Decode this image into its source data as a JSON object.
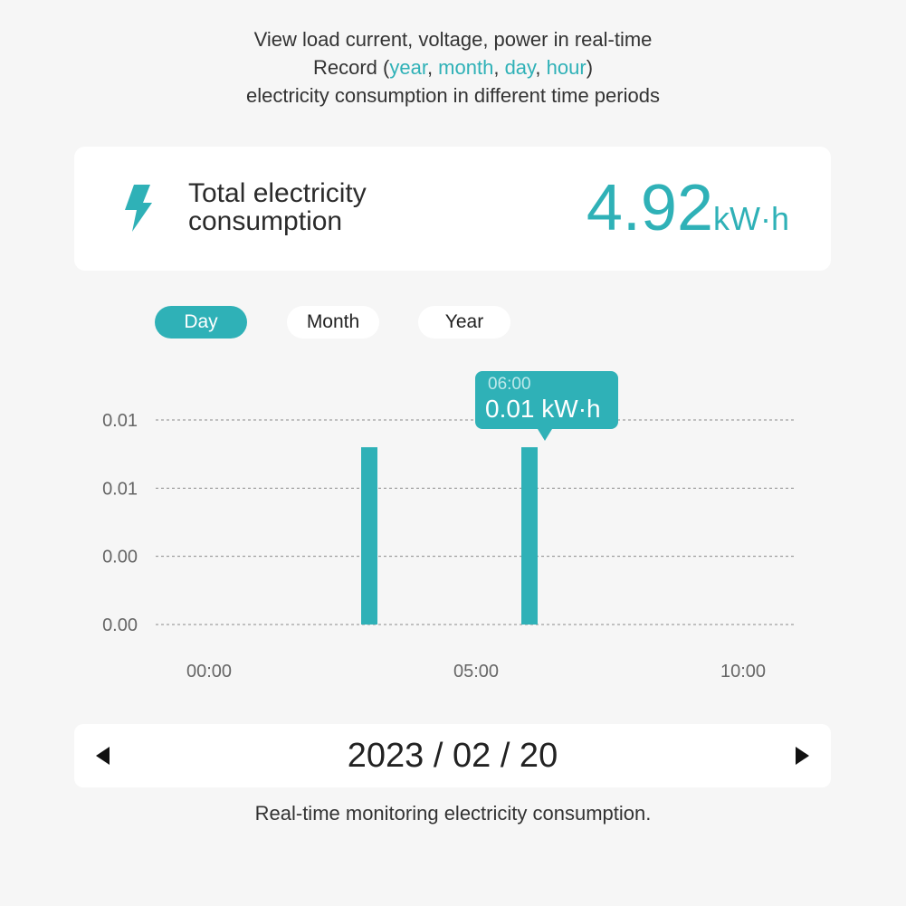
{
  "intro": {
    "line1": "View load current, voltage, power in real-time",
    "line2_prefix": "Record (",
    "line2_year": "year",
    "line2_sep1": ", ",
    "line2_month": "month",
    "line2_sep2": ", ",
    "line2_day": "day",
    "line2_sep3": ", ",
    "line2_hour": "hour",
    "line2_suffix": ")",
    "line3": "electricity consumption in different time periods"
  },
  "summary": {
    "icon": "lightning-bolt-icon",
    "label_line1": "Total electricity",
    "label_line2": "consumption",
    "value": "4.92",
    "unit": "kW·h"
  },
  "tabs": [
    {
      "label": "Day",
      "active": true
    },
    {
      "label": "Month",
      "active": false
    },
    {
      "label": "Year",
      "active": false
    }
  ],
  "tooltip": {
    "time": "06:00",
    "value": "0.01 kW·h"
  },
  "chart_data": {
    "type": "bar",
    "x_ticks": [
      "00:00",
      "05:00",
      "10:00"
    ],
    "y_ticks": [
      "0.00",
      "0.00",
      "0.01",
      "0.01"
    ],
    "x": [
      3,
      6
    ],
    "values": [
      0.013,
      0.013
    ],
    "xlim": [
      -1,
      11
    ],
    "ylim": [
      0,
      0.015
    ],
    "grid": true,
    "grid_style": "dotted",
    "bar_color": "#2fb1b7"
  },
  "date_nav": {
    "date": "2023 / 02 / 20",
    "prev_icon": "triangle-left-icon",
    "next_icon": "triangle-right-icon"
  },
  "footer": "Real-time monitoring electricity consumption.",
  "colors": {
    "accent": "#2fb1b7",
    "background": "#f6f6f6",
    "card": "#ffffff"
  }
}
